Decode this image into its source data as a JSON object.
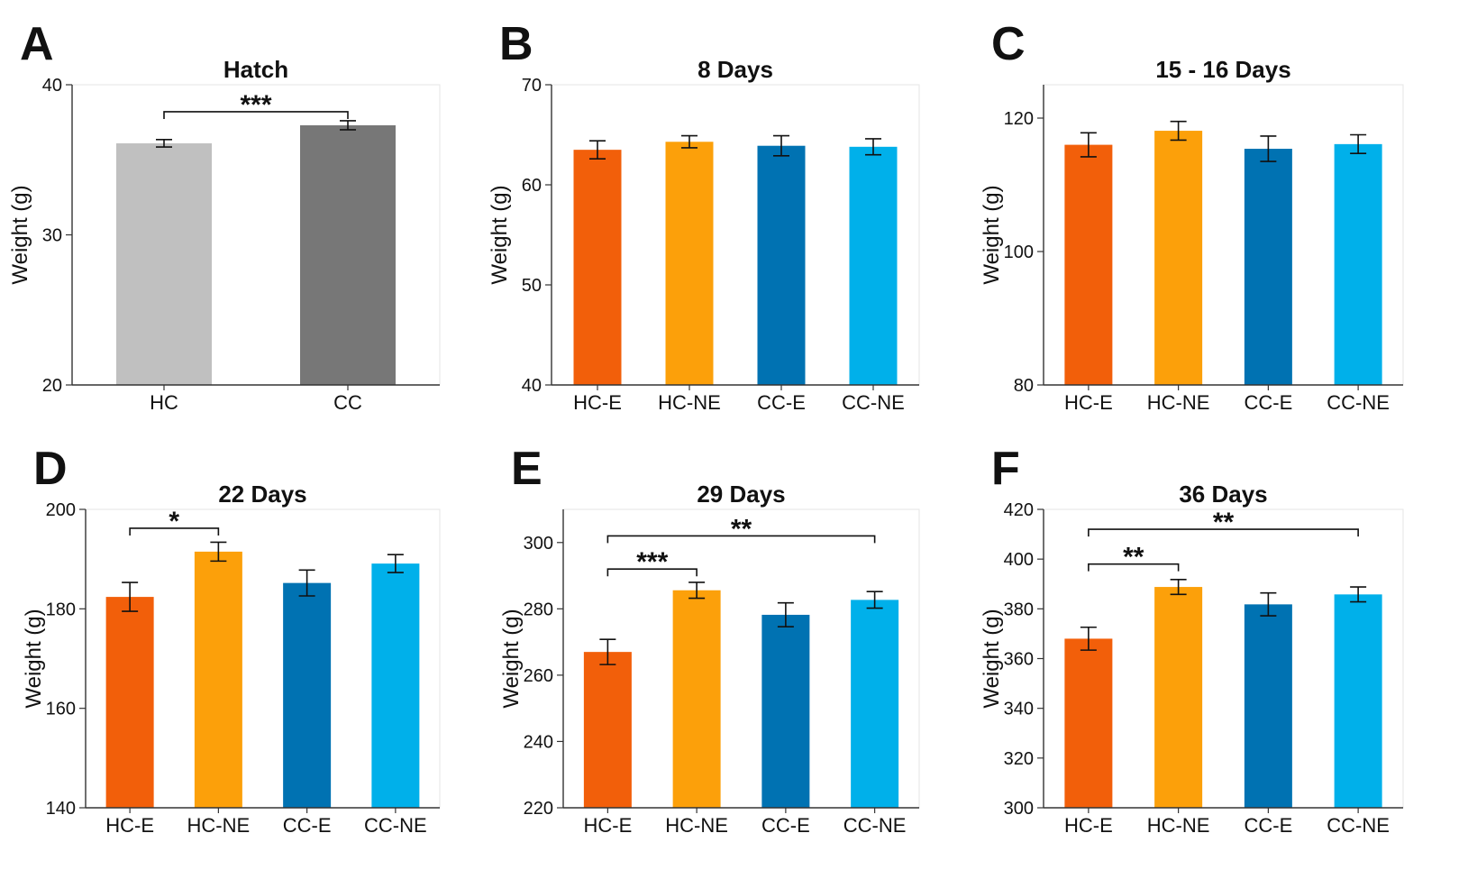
{
  "figure": {
    "panels": [
      {
        "letter": "A"
      },
      {
        "letter": "B"
      },
      {
        "letter": "C"
      },
      {
        "letter": "D"
      },
      {
        "letter": "E"
      },
      {
        "letter": "F"
      }
    ]
  },
  "chart_data": [
    {
      "type": "bar",
      "title": "Hatch",
      "xlabel": "",
      "ylabel": "Weight (g)",
      "ylim": [
        20,
        40
      ],
      "yticks": [
        20,
        30,
        40
      ],
      "categories": [
        "HC",
        "CC"
      ],
      "values": [
        36.1,
        37.3
      ],
      "errors": [
        0.25,
        0.3
      ],
      "colors": [
        "#c0c0c0",
        "#777777"
      ],
      "significance": [
        {
          "from": "HC",
          "to": "CC",
          "label": "***",
          "y": 38.2
        }
      ]
    },
    {
      "type": "bar",
      "title": "8 Days",
      "xlabel": "",
      "ylabel": "Weight (g)",
      "ylim": [
        40,
        70
      ],
      "yticks": [
        40,
        50,
        60,
        70
      ],
      "categories": [
        "HC-E",
        "HC-NE",
        "CC-E",
        "CC-NE"
      ],
      "values": [
        63.5,
        64.3,
        63.9,
        63.8
      ],
      "errors": [
        0.9,
        0.6,
        1.0,
        0.8
      ],
      "colors": [
        "#f25f0a",
        "#fca00a",
        "#0072b2",
        "#00b0ea"
      ],
      "significance": []
    },
    {
      "type": "bar",
      "title": "15 - 16 Days",
      "xlabel": "",
      "ylabel": "Weight (g)",
      "ylim": [
        80,
        125
      ],
      "yticks": [
        80,
        100,
        120
      ],
      "categories": [
        "HC-E",
        "HC-NE",
        "CC-E",
        "CC-NE"
      ],
      "values": [
        116.0,
        118.1,
        115.4,
        116.1
      ],
      "errors": [
        1.8,
        1.4,
        1.9,
        1.4
      ],
      "colors": [
        "#f25f0a",
        "#fca00a",
        "#0072b2",
        "#00b0ea"
      ],
      "significance": []
    },
    {
      "type": "bar",
      "title": "22 Days",
      "xlabel": "",
      "ylabel": "Weight (g)",
      "ylim": [
        140,
        200
      ],
      "yticks": [
        140,
        160,
        180,
        200
      ],
      "categories": [
        "HC-E",
        "HC-NE",
        "CC-E",
        "CC-NE"
      ],
      "values": [
        182.4,
        191.5,
        185.2,
        189.1
      ],
      "errors": [
        2.9,
        1.9,
        2.6,
        1.8
      ],
      "colors": [
        "#f25f0a",
        "#fca00a",
        "#0072b2",
        "#00b0ea"
      ],
      "significance": [
        {
          "from": "HC-E",
          "to": "HC-NE",
          "label": "*",
          "y": 196.2
        }
      ]
    },
    {
      "type": "bar",
      "title": "29 Days",
      "xlabel": "",
      "ylabel": "Weight (g)",
      "ylim": [
        220,
        310
      ],
      "yticks": [
        220,
        240,
        260,
        280,
        300
      ],
      "categories": [
        "HC-E",
        "HC-NE",
        "CC-E",
        "CC-NE"
      ],
      "values": [
        267.0,
        285.6,
        278.2,
        282.7
      ],
      "errors": [
        3.8,
        2.4,
        3.6,
        2.5
      ],
      "colors": [
        "#f25f0a",
        "#fca00a",
        "#0072b2",
        "#00b0ea"
      ],
      "significance": [
        {
          "from": "HC-E",
          "to": "HC-NE",
          "label": "***",
          "y": 292
        },
        {
          "from": "HC-E",
          "to": "CC-NE",
          "label": "**",
          "y": 302
        }
      ]
    },
    {
      "type": "bar",
      "title": "36 Days",
      "xlabel": "",
      "ylabel": "Weight (g)",
      "ylim": [
        300,
        420
      ],
      "yticks": [
        300,
        320,
        340,
        360,
        380,
        400,
        420
      ],
      "categories": [
        "HC-E",
        "HC-NE",
        "CC-E",
        "CC-NE"
      ],
      "values": [
        368.0,
        388.8,
        381.8,
        385.8
      ],
      "errors": [
        4.6,
        3.0,
        4.6,
        3.0
      ],
      "colors": [
        "#f25f0a",
        "#fca00a",
        "#0072b2",
        "#00b0ea"
      ],
      "significance": [
        {
          "from": "HC-E",
          "to": "HC-NE",
          "label": "**",
          "y": 398
        },
        {
          "from": "HC-E",
          "to": "CC-NE",
          "label": "**",
          "y": 412
        }
      ]
    }
  ]
}
